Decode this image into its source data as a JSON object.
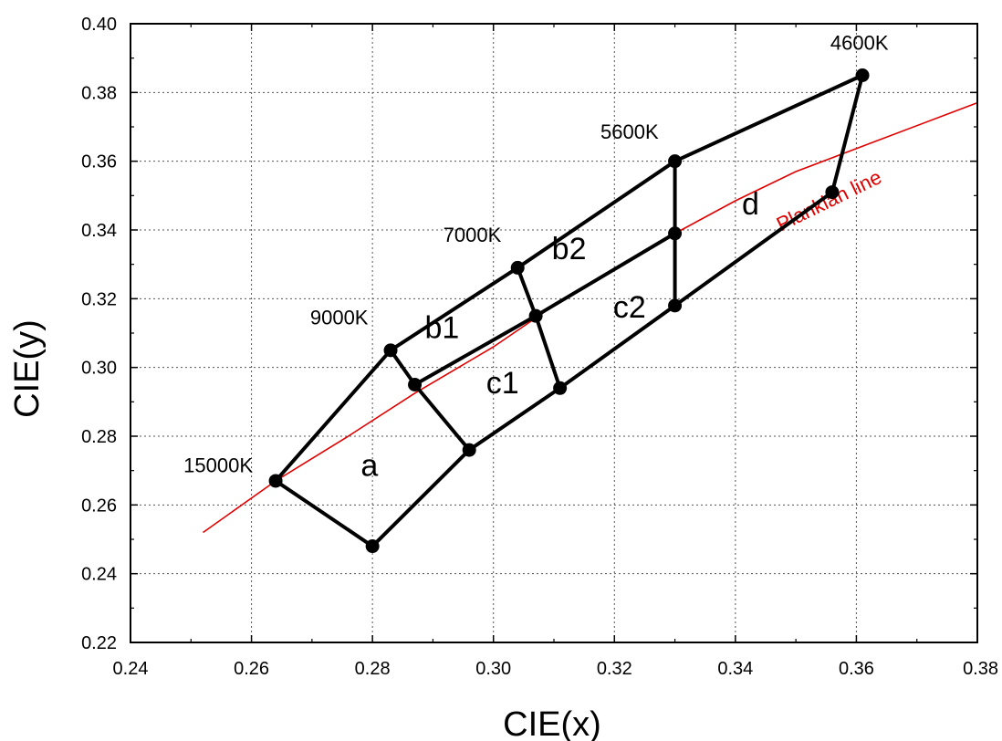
{
  "chart_data": {
    "type": "scatter",
    "title": "",
    "xlabel": "CIE(x)",
    "ylabel": "CIE(y)",
    "xlim": [
      0.24,
      0.38
    ],
    "ylim": [
      0.22,
      0.4
    ],
    "xticks": [
      "0.24",
      "0.26",
      "0.28",
      "0.30",
      "0.32",
      "0.34",
      "0.36",
      "0.38"
    ],
    "yticks": [
      "0.22",
      "0.24",
      "0.26",
      "0.28",
      "0.30",
      "0.32",
      "0.34",
      "0.36",
      "0.38",
      "0.40"
    ],
    "grid": true,
    "colors": {
      "boundary": "#000000",
      "planckian": "#e00000"
    },
    "points": [
      {
        "x": 0.264,
        "y": 0.267
      },
      {
        "x": 0.283,
        "y": 0.305
      },
      {
        "x": 0.304,
        "y": 0.329
      },
      {
        "x": 0.33,
        "y": 0.36
      },
      {
        "x": 0.361,
        "y": 0.385
      },
      {
        "x": 0.356,
        "y": 0.351
      },
      {
        "x": 0.33,
        "y": 0.318
      },
      {
        "x": 0.311,
        "y": 0.294
      },
      {
        "x": 0.296,
        "y": 0.276
      },
      {
        "x": 0.28,
        "y": 0.248
      },
      {
        "x": 0.287,
        "y": 0.295
      },
      {
        "x": 0.307,
        "y": 0.315
      },
      {
        "x": 0.33,
        "y": 0.339
      }
    ],
    "segments": [
      [
        [
          0.264,
          0.267
        ],
        [
          0.283,
          0.305
        ]
      ],
      [
        [
          0.283,
          0.305
        ],
        [
          0.304,
          0.329
        ]
      ],
      [
        [
          0.304,
          0.329
        ],
        [
          0.33,
          0.36
        ]
      ],
      [
        [
          0.33,
          0.36
        ],
        [
          0.361,
          0.385
        ]
      ],
      [
        [
          0.361,
          0.385
        ],
        [
          0.356,
          0.351
        ]
      ],
      [
        [
          0.356,
          0.351
        ],
        [
          0.33,
          0.318
        ]
      ],
      [
        [
          0.33,
          0.318
        ],
        [
          0.311,
          0.294
        ]
      ],
      [
        [
          0.311,
          0.294
        ],
        [
          0.296,
          0.276
        ]
      ],
      [
        [
          0.296,
          0.276
        ],
        [
          0.28,
          0.248
        ]
      ],
      [
        [
          0.28,
          0.248
        ],
        [
          0.264,
          0.267
        ]
      ],
      [
        [
          0.283,
          0.305
        ],
        [
          0.287,
          0.295
        ]
      ],
      [
        [
          0.287,
          0.295
        ],
        [
          0.296,
          0.276
        ]
      ],
      [
        [
          0.287,
          0.295
        ],
        [
          0.307,
          0.315
        ]
      ],
      [
        [
          0.307,
          0.315
        ],
        [
          0.33,
          0.339
        ]
      ],
      [
        [
          0.304,
          0.329
        ],
        [
          0.307,
          0.315
        ]
      ],
      [
        [
          0.307,
          0.315
        ],
        [
          0.311,
          0.294
        ]
      ],
      [
        [
          0.33,
          0.36
        ],
        [
          0.33,
          0.339
        ]
      ],
      [
        [
          0.33,
          0.339
        ],
        [
          0.33,
          0.318
        ]
      ]
    ],
    "planckian_line": {
      "name": "Plankian line",
      "x": [
        0.252,
        0.264,
        0.276,
        0.287,
        0.3,
        0.31,
        0.32,
        0.33,
        0.34,
        0.35,
        0.362,
        0.38
      ],
      "y": [
        0.252,
        0.267,
        0.28,
        0.2925,
        0.306,
        0.318,
        0.3285,
        0.339,
        0.3485,
        0.357,
        0.365,
        0.377
      ]
    },
    "point_labels": [
      {
        "text": "15000K",
        "x": 0.2545,
        "y": 0.2695
      },
      {
        "text": "9000K",
        "x": 0.2745,
        "y": 0.3125
      },
      {
        "text": "7000K",
        "x": 0.2965,
        "y": 0.3365
      },
      {
        "text": "5600K",
        "x": 0.3225,
        "y": 0.3665
      },
      {
        "text": "4600K",
        "x": 0.3605,
        "y": 0.3925
      }
    ],
    "region_labels": [
      {
        "text": "a",
        "x": 0.2795,
        "y": 0.2685
      },
      {
        "text": "b1",
        "x": 0.2915,
        "y": 0.3085
      },
      {
        "text": "c1",
        "x": 0.3015,
        "y": 0.2925
      },
      {
        "text": "b2",
        "x": 0.3125,
        "y": 0.3315
      },
      {
        "text": "c2",
        "x": 0.3225,
        "y": 0.3145
      },
      {
        "text": "d",
        "x": 0.3425,
        "y": 0.3445
      }
    ]
  }
}
